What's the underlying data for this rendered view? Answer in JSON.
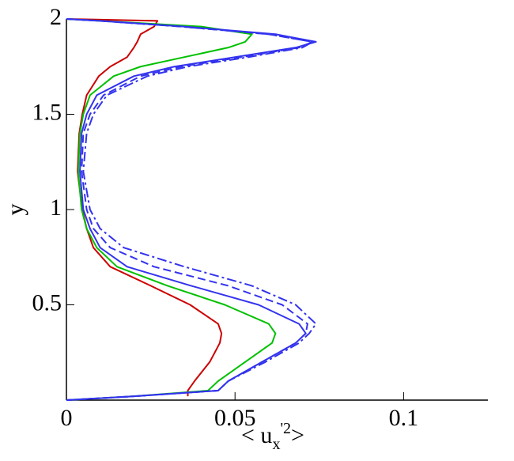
{
  "chart_data": {
    "type": "line",
    "ylabel": "y",
    "xlabel": {
      "open": "< u",
      "sub": "x",
      "sup": "'2",
      "close": ">"
    },
    "y": [
      0,
      0.02,
      0.05,
      0.1,
      0.2,
      0.3,
      0.35,
      0.4,
      0.5,
      0.6,
      0.7,
      0.8,
      0.9,
      1.0,
      1.2,
      1.4,
      1.5,
      1.6,
      1.7,
      1.75,
      1.8,
      1.85,
      1.88,
      1.92,
      1.96,
      1.99,
      2.0
    ],
    "series": [
      {
        "color": "#cc0000",
        "dash": "solid",
        "values": [
          null,
          0.036,
          0.036,
          0.038,
          0.0425,
          0.0455,
          0.046,
          0.045,
          0.0367,
          0.025,
          0.013,
          0.008,
          0.006,
          0.0047,
          0.0033,
          0.0038,
          0.0047,
          0.006,
          0.0096,
          0.013,
          0.018,
          0.02,
          0.021,
          0.022,
          0.026,
          0.027,
          0
        ]
      },
      {
        "color": "#00c000",
        "dash": "solid",
        "values": [
          0,
          0.02,
          0.042,
          0.045,
          0.053,
          0.061,
          0.062,
          0.06,
          0.047,
          0.03,
          0.015,
          0.009,
          0.006,
          0.0045,
          0.0035,
          0.004,
          0.005,
          0.007,
          0.014,
          0.022,
          0.035,
          0.048,
          0.053,
          0.055,
          0.04,
          0.01,
          0
        ]
      },
      {
        "color": "#3333ee",
        "dash": "solid",
        "values": [
          0,
          0.02,
          0.045,
          0.048,
          0.058,
          0.068,
          0.071,
          0.069,
          0.057,
          0.037,
          0.018,
          0.01,
          0.007,
          0.005,
          0.004,
          0.0045,
          0.006,
          0.009,
          0.02,
          0.032,
          0.05,
          0.068,
          0.074,
          0.062,
          0.035,
          0.01,
          0
        ]
      },
      {
        "color": "#3333ee",
        "dash": "dashed",
        "values": [
          0,
          0.02,
          0.045,
          0.048,
          0.058,
          0.068,
          0.071,
          0.0715,
          0.064,
          0.048,
          0.026,
          0.013,
          0.008,
          0.006,
          0.0045,
          0.005,
          0.007,
          0.011,
          0.022,
          0.034,
          0.052,
          0.069,
          0.073,
          0.06,
          0.034,
          0.01,
          0
        ]
      },
      {
        "color": "#3333ee",
        "dash": "dashdot",
        "values": [
          0,
          0.02,
          0.045,
          0.048,
          0.059,
          0.069,
          0.072,
          0.074,
          0.068,
          0.055,
          0.035,
          0.017,
          0.01,
          0.007,
          0.005,
          0.006,
          0.008,
          0.012,
          0.024,
          0.036,
          0.054,
          0.07,
          0.073,
          0.06,
          0.034,
          0.01,
          0
        ]
      }
    ],
    "xlim": [
      0,
      0.125
    ],
    "xticks": [
      0,
      0.05,
      0.1
    ],
    "ylim": [
      0,
      2
    ],
    "yticks": [
      0.5,
      1,
      1.5,
      2
    ],
    "grid": false
  }
}
